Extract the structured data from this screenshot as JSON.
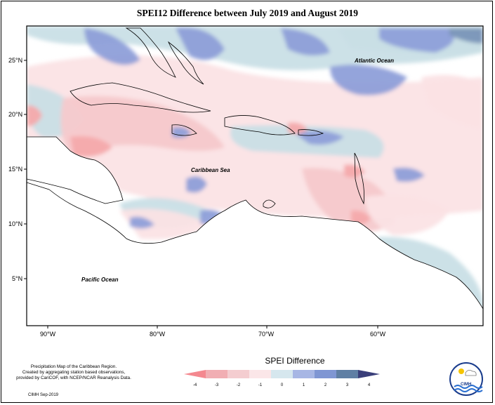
{
  "title": "SPEI12 Difference between July 2019 and August 2019",
  "map": {
    "lat_labels": [
      "25°N",
      "20°N",
      "15°N",
      "10°N",
      "5°N"
    ],
    "lon_labels": [
      "90°W",
      "80°W",
      "70°W",
      "60°W"
    ],
    "places": {
      "atlantic": "Atlantic Ocean",
      "caribbean": "Caribbean Sea",
      "pacific": "Pacific Ocean"
    },
    "colors": {
      "land_outline": "#000000",
      "ocean_bg": "#ffffff",
      "minus3": "#f4a9ab",
      "minus2": "#f6c9cc",
      "minus1": "#fbe3e5",
      "plus1": "#c9dfe6",
      "plus2": "#8e9fd9",
      "plus3": "#7a95b8"
    }
  },
  "legend": {
    "title": "SPEI Difference",
    "ticks": [
      "-4",
      "-3",
      "-2",
      "-1",
      "0",
      "1",
      "2",
      "3",
      "4"
    ],
    "colors": [
      "#f4888f",
      "#f1aeb3",
      "#f4cdd0",
      "#fbe6e8",
      "#d6e7ee",
      "#a7b6e4",
      "#7f96d3",
      "#5f7fa4",
      "#3a3f7a"
    ]
  },
  "credit": {
    "lines": [
      "Precipitation Map of the Caribbean Region.",
      "Created by aggregating station based observations,",
      "provided by CariCOF, with NCEP/NCAR Reanalysis Data."
    ],
    "date": "CIMH Sep-2019"
  },
  "logo": {
    "text": "CIMH"
  }
}
